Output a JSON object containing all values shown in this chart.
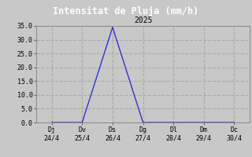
{
  "title": "Intensitat de Pluja (mm/h)",
  "subtitle": "2025",
  "fig_bg_color": "#c8c8c8",
  "title_bg_color": "#000000",
  "title_color": "#ffffff",
  "line_color": "#3333cc",
  "x_labels": [
    "Dj\n24/4",
    "Dv\n25/4",
    "Ds\n26/4",
    "Dg\n27/4",
    "Dl\n28/4",
    "Dm\n29/4",
    "Dc\n30/4"
  ],
  "x_values": [
    0,
    1,
    2,
    3,
    4,
    5,
    6
  ],
  "y_data": [
    0.0,
    0.0,
    34.5,
    0.0,
    0.0,
    0.0,
    0.0
  ],
  "ylim": [
    0.0,
    35.0
  ],
  "yticks": [
    0.0,
    5.0,
    10.0,
    15.0,
    20.0,
    25.0,
    30.0,
    35.0
  ],
  "grid_color": "#aaaaaa",
  "grid_style": "--",
  "plot_bg_color": "#c8c8c8",
  "title_fontsize": 8.5,
  "subtitle_fontsize": 7,
  "tick_fontsize": 6
}
